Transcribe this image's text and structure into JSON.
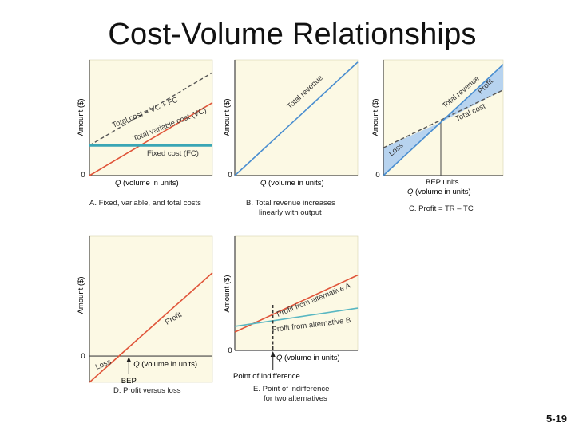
{
  "slide": {
    "title": "Cost-Volume Relationships",
    "page_number": "5-19"
  },
  "colors": {
    "panel_bg": "#fcf9e4",
    "total_cost": "#555555",
    "variable_cost": "#e0553a",
    "fixed_cost": "#3aa6b5",
    "revenue": "#4a8ed0",
    "profit_region": "#b7d3ef",
    "alt_a": "#e0553a",
    "alt_b": "#59b7c2"
  },
  "chart_data": [
    {
      "id": "A",
      "type": "line",
      "caption": "A. Fixed, variable, and total costs",
      "ylabel": "Amount ($)",
      "xlabel_q": "Q",
      "xlabel_rest": " (volume in units)",
      "origin_label": "0",
      "xlim": [
        0,
        10
      ],
      "ylim": [
        0,
        10
      ],
      "series": [
        {
          "name": "Total cost = VC + FC",
          "x": [
            0,
            10
          ],
          "y": [
            2.6,
            8.9
          ],
          "style": "dashed",
          "color": "#555555"
        },
        {
          "name": "Total variable cost (VC)",
          "x": [
            0,
            10
          ],
          "y": [
            0,
            6.3
          ],
          "style": "solid",
          "color": "#e0553a"
        },
        {
          "name": "Fixed cost (FC)",
          "x": [
            0,
            10
          ],
          "y": [
            2.6,
            2.6
          ],
          "style": "solid",
          "color": "#3aa6b5"
        }
      ]
    },
    {
      "id": "B",
      "type": "line",
      "caption": "B. Total revenue increases",
      "caption_line2": "linearly with output",
      "ylabel": "Amount ($)",
      "xlabel_q": "Q",
      "xlabel_rest": " (volume in units)",
      "origin_label": "0",
      "xlim": [
        0,
        10
      ],
      "ylim": [
        0,
        10
      ],
      "series": [
        {
          "name": "Total revenue",
          "x": [
            0,
            10
          ],
          "y": [
            0,
            9.8
          ],
          "style": "solid",
          "color": "#4a8ed0"
        }
      ]
    },
    {
      "id": "C",
      "type": "line",
      "caption": "C. Profit = TR – TC",
      "ylabel": "Amount ($)",
      "bep_label": "BEP units",
      "xlabel_q": "Q",
      "xlabel_rest": " (volume in units)",
      "origin_label": "0",
      "xlim": [
        0,
        10
      ],
      "ylim": [
        0,
        10
      ],
      "bep_x": 4.8,
      "region_labels": {
        "loss": "Loss",
        "profit": "Profit"
      },
      "series": [
        {
          "name": "Total revenue",
          "x": [
            0,
            10
          ],
          "y": [
            0,
            9.6
          ],
          "style": "solid",
          "color": "#4a8ed0"
        },
        {
          "name": "Total cost",
          "x": [
            0,
            10
          ],
          "y": [
            2.4,
            7.4
          ],
          "style": "dashed",
          "color": "#555555"
        }
      ]
    },
    {
      "id": "D",
      "type": "line",
      "caption": "D. Profit versus loss",
      "ylabel": "Amount ($)",
      "bep_label": "BEP",
      "xlabel_q": "Q",
      "xlabel_rest": " (volume in units)",
      "origin_label": "0",
      "xlim": [
        0,
        10
      ],
      "ylim": [
        -1.8,
        8.2
      ],
      "bep_x": 3.2,
      "series": [
        {
          "name": "Profit",
          "x": [
            0,
            10
          ],
          "y": [
            -1.8,
            5.7
          ],
          "style": "solid",
          "color": "#e0553a"
        }
      ],
      "labels": {
        "loss": "Loss",
        "profit": "Profit"
      }
    },
    {
      "id": "E",
      "type": "line",
      "caption": "E. Point of indifference",
      "caption_line2": "for two alternatives",
      "ylabel": "Amount ($)",
      "indifference_label": "Point of indifference",
      "xlabel_q": "Q",
      "xlabel_rest": " (volume in units)",
      "origin_label": "0",
      "xlim": [
        0,
        10
      ],
      "ylim": [
        0,
        10
      ],
      "indifference_x": 3.1,
      "series": [
        {
          "name": "Profit from alternative A",
          "x": [
            0,
            10
          ],
          "y": [
            1.6,
            6.6
          ],
          "style": "solid",
          "color": "#e0553a"
        },
        {
          "name": "Profit from alternative B",
          "x": [
            0,
            10
          ],
          "y": [
            2.1,
            3.7
          ],
          "style": "solid",
          "color": "#59b7c2"
        }
      ]
    }
  ]
}
